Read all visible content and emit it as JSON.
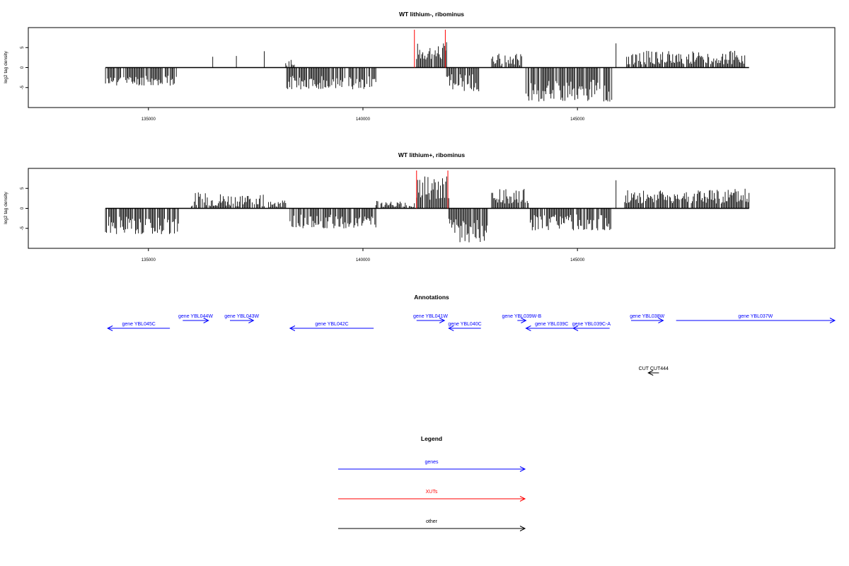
{
  "chart_data": [
    {
      "type": "bar",
      "title": "WT lithium-, ribominus",
      "ylabel": "log2 tag density",
      "xlabel": "",
      "xlim": [
        132200,
        151000
      ],
      "ylim": [
        -10,
        10
      ],
      "x_ticks": [
        135000,
        140000,
        145000
      ],
      "x_tick_labels": [
        "135000",
        "140000",
        "145000"
      ],
      "y_ticks": [
        5,
        0,
        -5
      ],
      "y_tick_labels": [
        "5",
        "0",
        "-5"
      ],
      "baseline": {
        "from": 134000,
        "to": 149000
      },
      "segments": [
        {
          "from": 134000,
          "to": 135650,
          "min": -4.5,
          "max": -2.0,
          "seed": 11
        },
        {
          "from": 136500,
          "to": 136500,
          "min": 2.5,
          "max": 2.8,
          "seed": 12
        },
        {
          "from": 137050,
          "to": 137050,
          "min": 2.8,
          "max": 3.0,
          "seed": 13
        },
        {
          "from": 137700,
          "to": 137700,
          "min": 4.0,
          "max": 4.3,
          "seed": 14
        },
        {
          "from": 138200,
          "to": 138400,
          "min": 0.5,
          "max": 2.0,
          "seed": 15
        },
        {
          "from": 138200,
          "to": 140300,
          "min": -5.5,
          "max": -2.0,
          "seed": 16
        },
        {
          "from": 141250,
          "to": 141950,
          "min": 2.0,
          "max": 6.5,
          "seed": 17
        },
        {
          "from": 141950,
          "to": 142700,
          "min": -6.0,
          "max": -1.5,
          "seed": 18
        },
        {
          "from": 143000,
          "to": 143700,
          "min": 0.5,
          "max": 3.5,
          "seed": 19
        },
        {
          "from": 143800,
          "to": 145800,
          "min": -8.5,
          "max": -3.0,
          "seed": 20
        },
        {
          "from": 145900,
          "to": 145900,
          "min": 6.0,
          "max": 6.3,
          "seed": 21
        },
        {
          "from": 146100,
          "to": 148900,
          "min": 0.8,
          "max": 4.2,
          "seed": 22
        }
      ],
      "highlights": [
        141200,
        141920
      ]
    },
    {
      "type": "bar",
      "title": "WT lithium+, ribominus",
      "ylabel": "log2 tag density",
      "xlabel": "",
      "xlim": [
        132200,
        151000
      ],
      "ylim": [
        -10,
        10
      ],
      "x_ticks": [
        135000,
        140000,
        145000
      ],
      "x_tick_labels": [
        "135000",
        "140000",
        "145000"
      ],
      "y_ticks": [
        5,
        0,
        -5
      ],
      "y_tick_labels": [
        "5",
        "0",
        "-5"
      ],
      "baseline": {
        "from": 134000,
        "to": 149000
      },
      "segments": [
        {
          "from": 134000,
          "to": 135700,
          "min": -6.5,
          "max": -2.0,
          "seed": 31
        },
        {
          "from": 136000,
          "to": 137700,
          "min": 0.5,
          "max": 4.0,
          "seed": 32
        },
        {
          "from": 137800,
          "to": 138200,
          "min": 0.3,
          "max": 2.0,
          "seed": 33
        },
        {
          "from": 138300,
          "to": 140300,
          "min": -5.0,
          "max": -1.5,
          "seed": 34
        },
        {
          "from": 140300,
          "to": 141200,
          "min": 0.3,
          "max": 2.0,
          "seed": 35
        },
        {
          "from": 141250,
          "to": 142000,
          "min": 2.0,
          "max": 8.0,
          "seed": 36
        },
        {
          "from": 142000,
          "to": 142900,
          "min": -8.5,
          "max": -2.5,
          "seed": 37
        },
        {
          "from": 143000,
          "to": 143900,
          "min": 1.0,
          "max": 5.0,
          "seed": 38
        },
        {
          "from": 143900,
          "to": 145800,
          "min": -5.5,
          "max": -1.5,
          "seed": 39
        },
        {
          "from": 145900,
          "to": 145900,
          "min": 7.0,
          "max": 7.3,
          "seed": 40
        },
        {
          "from": 146100,
          "to": 149000,
          "min": 1.2,
          "max": 5.0,
          "seed": 41
        }
      ],
      "highlights": [
        141250,
        141980
      ]
    }
  ],
  "annotations": {
    "title": "Annotations",
    "xlim": [
      132200,
      151000
    ],
    "features": [
      {
        "label": "gene YBL045C",
        "from": 135500,
        "to": 134050,
        "row": 2,
        "color": "#0000ff"
      },
      {
        "label": "gene YBL044W",
        "from": 135800,
        "to": 136400,
        "row": 1,
        "color": "#0000ff"
      },
      {
        "label": "gene YBL043W",
        "from": 136900,
        "to": 137450,
        "row": 1,
        "color": "#0000ff"
      },
      {
        "label": "gene YBL042C",
        "from": 140250,
        "to": 138300,
        "row": 2,
        "color": "#0000ff"
      },
      {
        "label": "gene YBL041W",
        "from": 141250,
        "to": 141900,
        "row": 1,
        "color": "#0000ff"
      },
      {
        "label": "gene YBL040C",
        "from": 142750,
        "to": 142000,
        "row": 2,
        "color": "#0000ff"
      },
      {
        "label": "gene YBL039W-B",
        "from": 143600,
        "to": 143800,
        "row": 1,
        "color": "#0000ff"
      },
      {
        "label": "gene YBL039C",
        "from": 145000,
        "to": 143800,
        "row": 2,
        "color": "#0000ff"
      },
      {
        "label": "gene YBL039C-A",
        "from": 145750,
        "to": 144900,
        "row": 2,
        "color": "#0000ff"
      },
      {
        "label": "gene YBL038W",
        "from": 146250,
        "to": 147000,
        "row": 1,
        "color": "#0000ff"
      },
      {
        "label": "gene YBL037W",
        "from": 147300,
        "to": 151000,
        "row": 1,
        "color": "#0000ff"
      },
      {
        "label": "CUT CUT444",
        "from": 146900,
        "to": 146650,
        "row": 3,
        "color": "#000000"
      }
    ]
  },
  "legend": {
    "title": "Legend",
    "items": [
      {
        "label": "genes",
        "color": "#0000ff"
      },
      {
        "label": "XUTs",
        "color": "#ff0000"
      },
      {
        "label": "other",
        "color": "#000000"
      }
    ]
  }
}
